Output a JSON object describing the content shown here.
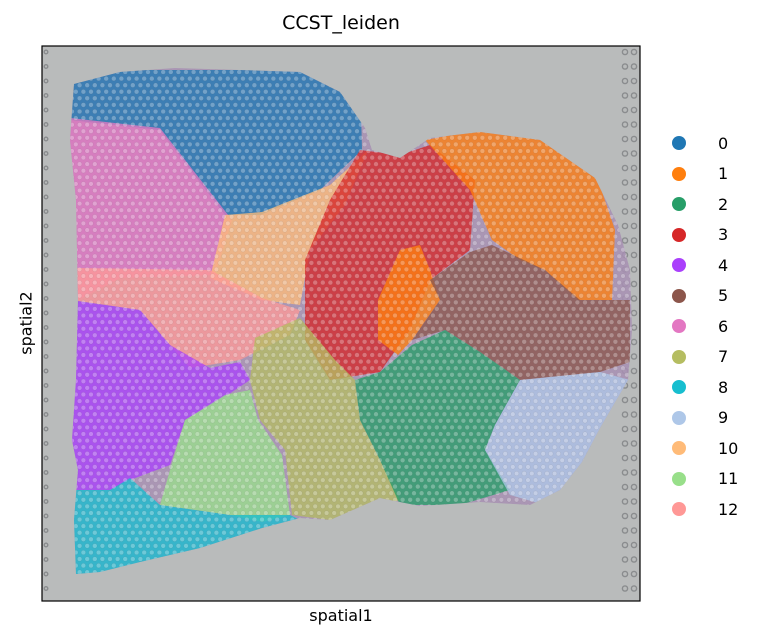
{
  "chart_data": {
    "type": "scatter",
    "title": "CCST_leiden",
    "xlabel": "spatial1",
    "ylabel": "spatial2",
    "grid": false,
    "legend_position": "right",
    "background": "tissue histology image (grey slide with purple-stained tissue)",
    "series": [
      {
        "name": "0",
        "color": "#1f77b4"
      },
      {
        "name": "1",
        "color": "#ff7f0e"
      },
      {
        "name": "2",
        "color": "#279e68"
      },
      {
        "name": "3",
        "color": "#d62728"
      },
      {
        "name": "4",
        "color": "#aa40fc"
      },
      {
        "name": "5",
        "color": "#8c564b"
      },
      {
        "name": "6",
        "color": "#e377c2"
      },
      {
        "name": "7",
        "color": "#b5bd61"
      },
      {
        "name": "8",
        "color": "#17becf"
      },
      {
        "name": "9",
        "color": "#aec7e8"
      },
      {
        "name": "10",
        "color": "#ffbb78"
      },
      {
        "name": "11",
        "color": "#98df8a"
      },
      {
        "name": "12",
        "color": "#ff9896"
      }
    ]
  }
}
